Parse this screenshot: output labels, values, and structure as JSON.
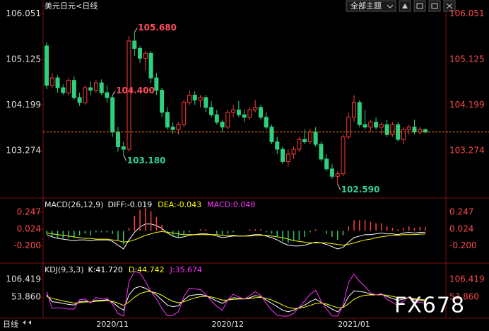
{
  "toolbar": {
    "theme": "全部主题"
  },
  "period_button": "日线",
  "watermark": "FX678",
  "chart_data": [
    {
      "type": "candlestick",
      "title": "美元日元<日线",
      "up_color": "#ff3b3b",
      "down_color": "#2fd07d",
      "last_line_color": "#ff8c00",
      "ylim": [
        102.38,
        106.19
      ],
      "yticks": [
        106.051,
        105.125,
        104.199,
        103.274
      ],
      "values": [
        [
          105.4,
          105.48,
          104.52,
          104.6
        ],
        [
          104.6,
          104.85,
          104.55,
          104.75
        ],
        [
          104.75,
          104.8,
          104.45,
          104.55
        ],
        [
          104.55,
          104.62,
          104.4,
          104.45
        ],
        [
          104.45,
          104.75,
          104.4,
          104.7
        ],
        [
          104.7,
          104.78,
          104.3,
          104.35
        ],
        [
          104.35,
          104.45,
          104.18,
          104.25
        ],
        [
          104.25,
          104.6,
          104.2,
          104.55
        ],
        [
          104.55,
          104.68,
          104.4,
          104.5
        ],
        [
          104.5,
          104.7,
          104.45,
          104.65
        ],
        [
          104.65,
          104.72,
          104.4,
          104.45
        ],
        [
          104.45,
          104.6,
          104.25,
          104.35
        ],
        [
          104.35,
          104.4,
          103.55,
          103.65
        ],
        [
          103.65,
          103.75,
          103.25,
          103.35
        ],
        [
          103.35,
          103.45,
          103.18,
          103.3
        ],
        [
          103.3,
          105.6,
          103.25,
          105.5
        ],
        [
          105.5,
          105.68,
          105.2,
          105.35
        ],
        [
          105.35,
          105.4,
          105.05,
          105.15
        ],
        [
          105.15,
          105.3,
          104.9,
          105.25
        ],
        [
          105.25,
          105.3,
          104.65,
          104.75
        ],
        [
          104.75,
          104.85,
          104.4,
          104.5
        ],
        [
          104.5,
          104.55,
          103.95,
          104.05
        ],
        [
          104.05,
          104.15,
          103.7,
          103.75
        ],
        [
          103.75,
          103.85,
          103.62,
          103.7
        ],
        [
          103.7,
          103.85,
          103.6,
          103.8
        ],
        [
          103.8,
          104.3,
          103.75,
          104.25
        ],
        [
          104.25,
          104.5,
          104.2,
          104.4
        ],
        [
          104.4,
          104.48,
          104.2,
          104.3
        ],
        [
          104.3,
          104.4,
          104.15,
          104.35
        ],
        [
          104.35,
          104.4,
          104.05,
          104.15
        ],
        [
          104.15,
          104.28,
          103.95,
          104
        ],
        [
          104,
          104.1,
          103.8,
          103.85
        ],
        [
          103.85,
          103.9,
          103.65,
          103.75
        ],
        [
          103.75,
          104.1,
          103.7,
          104.05
        ],
        [
          104.05,
          104.2,
          103.95,
          104.1
        ],
        [
          104.1,
          104.28,
          103.95,
          104
        ],
        [
          104,
          104.1,
          103.85,
          103.95
        ],
        [
          103.95,
          104.15,
          103.9,
          104.1
        ],
        [
          104.1,
          104.3,
          104.05,
          104.15
        ],
        [
          104.15,
          104.2,
          103.9,
          103.95
        ],
        [
          103.95,
          104.05,
          103.7,
          103.75
        ],
        [
          103.75,
          103.8,
          103.4,
          103.45
        ],
        [
          103.45,
          103.55,
          103.2,
          103.3
        ],
        [
          103.3,
          103.35,
          103,
          103.05
        ],
        [
          103.05,
          103.3,
          102.95,
          103.2
        ],
        [
          103.2,
          103.35,
          103.1,
          103.3
        ],
        [
          103.3,
          103.55,
          103.25,
          103.5
        ],
        [
          103.5,
          103.7,
          103.4,
          103.45
        ],
        [
          103.45,
          103.72,
          103.4,
          103.65
        ],
        [
          103.65,
          103.75,
          103.35,
          103.4
        ],
        [
          103.4,
          103.45,
          103.05,
          103.1
        ],
        [
          103.1,
          103.2,
          102.85,
          102.9
        ],
        [
          102.9,
          103,
          102.7,
          102.75
        ],
        [
          102.75,
          102.85,
          102.59,
          102.8
        ],
        [
          102.8,
          103.6,
          102.75,
          103.55
        ],
        [
          103.55,
          104.05,
          103.5,
          103.95
        ],
        [
          103.95,
          104.4,
          103.85,
          104.25
        ],
        [
          104.25,
          104.3,
          103.75,
          103.8
        ],
        [
          103.8,
          104.1,
          103.7,
          103.75
        ],
        [
          103.75,
          103.9,
          103.65,
          103.85
        ],
        [
          103.85,
          103.95,
          103.7,
          103.75
        ],
        [
          103.75,
          103.85,
          103.6,
          103.8
        ],
        [
          103.8,
          103.9,
          103.55,
          103.6
        ],
        [
          103.6,
          103.85,
          103.55,
          103.8
        ],
        [
          103.8,
          103.85,
          103.45,
          103.5
        ],
        [
          103.5,
          103.75,
          103.4,
          103.7
        ],
        [
          103.7,
          103.8,
          103.6,
          103.75
        ],
        [
          103.75,
          103.9,
          103.6,
          103.65
        ],
        [
          103.65,
          103.75,
          103.6,
          103.7
        ],
        [
          103.7,
          103.72,
          103.62,
          103.65
        ]
      ],
      "extreme_labels": [
        {
          "label": "105.680",
          "value": 105.68
        },
        {
          "label": "103.180",
          "value": 103.18
        },
        {
          "label": "104.400",
          "value": 104.4
        },
        {
          "label": "102.590",
          "value": 102.59
        }
      ],
      "high_color": "#ff4b5c",
      "low_color": "#2fd0a0"
    },
    {
      "type": "indicator",
      "title": "MACD(26,12,9)",
      "ylim": [
        -0.39,
        0.415
      ],
      "yticks": [
        0.247,
        0.024,
        {
          "value": -0.2,
          "label": "-0.200"
        }
      ],
      "up_color": "#ff4040",
      "down_color": "#33cc66",
      "series": [
        {
          "name": "DIFF:-0.019",
          "color": "#ffffff",
          "style": "line",
          "values": [
            -0.05,
            -0.08,
            -0.1,
            -0.11,
            -0.12,
            -0.13,
            -0.12,
            -0.12,
            -0.13,
            -0.12,
            -0.12,
            -0.12,
            -0.14,
            -0.19,
            -0.24,
            -0.12,
            -0.02,
            0.05,
            0.09,
            0.09,
            0.07,
            0.03,
            -0.03,
            -0.07,
            -0.09,
            -0.08,
            -0.06,
            -0.05,
            -0.04,
            -0.04,
            -0.05,
            -0.07,
            -0.09,
            -0.08,
            -0.07,
            -0.07,
            -0.07,
            -0.06,
            -0.05,
            -0.05,
            -0.07,
            -0.09,
            -0.12,
            -0.16,
            -0.19,
            -0.2,
            -0.2,
            -0.19,
            -0.17,
            -0.15,
            -0.16,
            -0.18,
            -0.21,
            -0.24,
            -0.22,
            -0.15,
            -0.09,
            -0.07,
            -0.05,
            -0.05,
            -0.04,
            -0.03,
            -0.04,
            -0.04,
            -0.05,
            -0.03,
            -0.02,
            -0.03,
            -0.02,
            -0.019
          ]
        },
        {
          "name": "DEA:-0.043",
          "color": "#ffff00",
          "style": "line",
          "values": [
            -0.03,
            -0.04,
            -0.05,
            -0.06,
            -0.07,
            -0.08,
            -0.09,
            -0.1,
            -0.1,
            -0.11,
            -0.11,
            -0.11,
            -0.12,
            -0.13,
            -0.15,
            -0.14,
            -0.12,
            -0.09,
            -0.06,
            -0.04,
            -0.02,
            -0.01,
            -0.02,
            -0.03,
            -0.04,
            -0.05,
            -0.05,
            -0.05,
            -0.05,
            -0.05,
            -0.05,
            -0.05,
            -0.06,
            -0.06,
            -0.06,
            -0.07,
            -0.07,
            -0.07,
            -0.06,
            -0.06,
            -0.06,
            -0.07,
            -0.08,
            -0.09,
            -0.11,
            -0.13,
            -0.14,
            -0.15,
            -0.16,
            -0.16,
            -0.16,
            -0.16,
            -0.17,
            -0.18,
            -0.19,
            -0.18,
            -0.16,
            -0.14,
            -0.12,
            -0.11,
            -0.09,
            -0.08,
            -0.07,
            -0.06,
            -0.06,
            -0.05,
            -0.05,
            -0.05,
            -0.045,
            -0.043
          ]
        },
        {
          "name": "MACD:0.048",
          "color": "#ff33ff",
          "style": "bar",
          "values": [
            -0.04,
            -0.08,
            -0.1,
            -0.1,
            -0.1,
            -0.1,
            -0.06,
            -0.04,
            -0.06,
            -0.02,
            -0.02,
            -0.02,
            -0.04,
            -0.12,
            -0.18,
            0.04,
            0.2,
            0.28,
            0.3,
            0.26,
            0.18,
            0.08,
            -0.02,
            -0.08,
            -0.1,
            -0.06,
            -0.02,
            0,
            0.02,
            0.02,
            0,
            -0.04,
            -0.06,
            -0.04,
            -0.02,
            0,
            0,
            0.02,
            0.02,
            0.02,
            -0.02,
            -0.04,
            -0.08,
            -0.14,
            -0.16,
            -0.14,
            -0.12,
            -0.08,
            -0.02,
            0.02,
            0,
            -0.04,
            -0.08,
            -0.12,
            -0.06,
            0.06,
            0.14,
            0.14,
            0.14,
            0.12,
            0.1,
            0.1,
            0.06,
            0.04,
            0.02,
            0.04,
            0.06,
            0.04,
            0.05,
            0.048
          ]
        }
      ]
    },
    {
      "type": "indicator",
      "title": "KDJ(9,3,3)",
      "ylim": [
        -5,
        142
      ],
      "yticks": [
        106.419,
        {
          "value": 53.86,
          "label": "53.860"
        }
      ],
      "categories": [
        null,
        null,
        null,
        null,
        null,
        null,
        null,
        null,
        null,
        null,
        null,
        null,
        "2020/11",
        null,
        null,
        null,
        null,
        null,
        null,
        null,
        null,
        null,
        null,
        null,
        null,
        null,
        null,
        null,
        null,
        null,
        null,
        null,
        null,
        "2020/12",
        null,
        null,
        null,
        null,
        null,
        null,
        null,
        null,
        null,
        null,
        null,
        null,
        null,
        null,
        null,
        null,
        null,
        null,
        null,
        null,
        null,
        null,
        "2021/01",
        null,
        null,
        null,
        null,
        null,
        null,
        null,
        null,
        null,
        null,
        null,
        null,
        null
      ],
      "series": [
        {
          "name": "K:41.720",
          "color": "#ffffff",
          "style": "line",
          "values": [
            60,
            40,
            38,
            35,
            32,
            30,
            40,
            42,
            38,
            45,
            44,
            46,
            38,
            25,
            15,
            60,
            80,
            85,
            80,
            70,
            60,
            45,
            30,
            25,
            28,
            45,
            58,
            60,
            62,
            58,
            50,
            42,
            35,
            45,
            52,
            50,
            48,
            52,
            58,
            55,
            45,
            35,
            25,
            15,
            10,
            15,
            22,
            30,
            40,
            48,
            38,
            28,
            18,
            10,
            25,
            55,
            72,
            70,
            68,
            62,
            60,
            62,
            55,
            50,
            44,
            48,
            52,
            46,
            44,
            41.72
          ]
        },
        {
          "name": "D:44.742",
          "color": "#ffff00",
          "style": "line",
          "values": [
            55,
            50,
            46,
            42,
            39,
            36,
            37,
            39,
            39,
            41,
            42,
            43,
            41,
            36,
            29,
            39,
            53,
            64,
            69,
            70,
            66,
            59,
            49,
            41,
            37,
            40,
            46,
            51,
            55,
            56,
            54,
            50,
            45,
            45,
            47,
            48,
            48,
            49,
            52,
            53,
            50,
            45,
            38,
            30,
            23,
            20,
            21,
            24,
            29,
            35,
            36,
            33,
            28,
            22,
            23,
            34,
            47,
            55,
            59,
            60,
            60,
            61,
            59,
            56,
            52,
            51,
            51,
            49,
            47,
            44.742
          ]
        },
        {
          "name": "J:35.674",
          "color": "#ff33ff",
          "style": "line",
          "values": [
            70,
            20,
            22,
            21,
            18,
            18,
            46,
            48,
            36,
            53,
            48,
            52,
            32,
            5,
            -3,
            100,
            130,
            125,
            100,
            70,
            48,
            20,
            -2,
            0,
            10,
            55,
            80,
            78,
            76,
            62,
            42,
            26,
            15,
            45,
            62,
            54,
            48,
            58,
            70,
            59,
            35,
            15,
            0,
            -3,
            -3,
            5,
            24,
            42,
            62,
            74,
            42,
            18,
            -2,
            -3,
            29,
            97,
            122,
            100,
            86,
            66,
            60,
            64,
            47,
            38,
            28,
            42,
            54,
            40,
            38,
            35.674
          ]
        }
      ]
    }
  ]
}
